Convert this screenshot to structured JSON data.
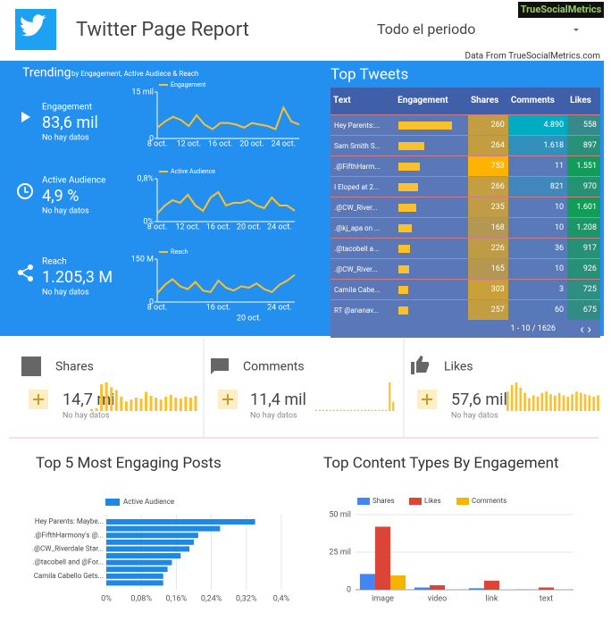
{
  "header": {
    "title": "Twitter Page Report",
    "period": "Todo el periodo",
    "brand": "TrueSocialMetrics",
    "source": "Data From TrueSocialMetrics.com"
  },
  "trending": {
    "title": "Trending",
    "subtitle": "by Engagement, Active Audiece & Reach",
    "metrics": [
      {
        "name": "Engagement",
        "value": "83,6 mil",
        "note": "No hay datos"
      },
      {
        "name": "Active Audience",
        "value": "4,9 %",
        "note": "No hay datos"
      },
      {
        "name": "Reach",
        "value": "1.205,3 M",
        "note": "No hay datos"
      }
    ]
  },
  "scorecards": [
    {
      "name": "Shares",
      "value": "14,7 mil",
      "note": "No hay datos"
    },
    {
      "name": "Comments",
      "value": "11,4 mil",
      "note": "No hay datos"
    },
    {
      "name": "Likes",
      "value": "57,6 mil",
      "note": "No hay datos"
    }
  ],
  "top_tweets": {
    "title": "Top Tweets",
    "columns": [
      "Text",
      "Engagement",
      "Shares",
      "Comments",
      "Likes"
    ],
    "engagement": [
      5708,
      2779,
      2315,
      2057,
      1846,
      1386,
      1179,
      1101,
      1031,
      992
    ],
    "rows": [
      [
        "Hey Parents:...",
        "260",
        "4.890",
        "558"
      ],
      [
        "Sam Smith S...",
        "264",
        "1.618",
        "897"
      ],
      [
        ".@FifthHarm...",
        "753",
        "11",
        "1.551"
      ],
      [
        "I Eloped at 2...",
        "266",
        "821",
        "970"
      ],
      [
        ".@CW_River...",
        "235",
        "10",
        "1.601"
      ],
      [
        ".@kj_apa on ...",
        "168",
        "10",
        "1.208"
      ],
      [
        ".@tacobell a...",
        "226",
        "36",
        "917"
      ],
      [
        ".@CW_River...",
        "165",
        "10",
        "926"
      ],
      [
        "Camila Cabe...",
        "303",
        "3",
        "725"
      ],
      [
        "RT @ananav...",
        "257",
        "60",
        "675"
      ]
    ],
    "pagination": "1 - 10 / 1626"
  },
  "chart_data": [
    {
      "type": "line",
      "categories": [
        "8 oct.",
        null,
        null,
        null,
        "12 oct.",
        null,
        null,
        null,
        "16 oct.",
        null,
        null,
        null,
        "20 oct.",
        null,
        null,
        null,
        "24 oct.",
        null,
        null
      ],
      "series": [
        {
          "name": "Engagement",
          "color": "#fbc02d",
          "values": [
            3500,
            5500,
            7000,
            6000,
            4000,
            7500,
            4500,
            3000,
            5000,
            5000,
            4500,
            3500,
            5000,
            4500,
            4000,
            3000,
            10000,
            5500,
            4500
          ]
        }
      ],
      "ylim": [
        0,
        15000
      ],
      "yticks": [
        0,
        {
          "value": 15000,
          "label": "15 mil"
        }
      ]
    },
    {
      "type": "line",
      "categories": [
        "8 oct.",
        null,
        null,
        null,
        "12 oct.",
        null,
        null,
        null,
        "16 oct.",
        null,
        null,
        null,
        "20 oct.",
        null,
        null,
        null,
        "24 oct.",
        null,
        null
      ],
      "series": [
        {
          "name": "Active Audience",
          "color": "#fbc02d",
          "values": [
            0.15,
            0.3,
            0.4,
            0.35,
            0.5,
            0.3,
            0.2,
            0.45,
            0.55,
            0.3,
            0.35,
            0.35,
            0.4,
            0.3,
            0.25,
            0.45,
            0.3,
            0.3,
            0.2
          ]
        }
      ],
      "ylim": [
        0,
        0.8
      ],
      "yticks": [
        {
          "value": 0,
          "label": "0%"
        },
        {
          "value": 0.8,
          "label": "0,8%"
        }
      ]
    },
    {
      "type": "line",
      "categories": [
        "8 oct.",
        null,
        null,
        null,
        null,
        null,
        null,
        null,
        "16 oct.",
        null,
        null,
        null,
        "20 oct.",
        null,
        null,
        null,
        "24 oct.",
        null,
        null
      ],
      "series": [
        {
          "name": "Reach",
          "color": "#fbc02d",
          "values": [
            30000000,
            60000000,
            80000000,
            55000000,
            45000000,
            70000000,
            40000000,
            35000000,
            75000000,
            50000000,
            40000000,
            55000000,
            50000000,
            65000000,
            45000000,
            35000000,
            60000000,
            75000000,
            95000000
          ]
        }
      ],
      "ylim": [
        0,
        150000000
      ],
      "yticks": [
        0,
        {
          "value": 150000000,
          "label": "150 M"
        }
      ]
    },
    {
      "type": "spark",
      "color": "#fbc02d",
      "values": [
        2,
        3,
        28,
        30,
        25,
        22,
        15,
        10,
        12,
        14,
        13,
        20,
        16,
        14,
        12,
        15,
        17,
        14,
        13,
        15,
        14,
        16
      ]
    },
    {
      "type": "spark",
      "color": "#fbc02d",
      "values": [
        1,
        1,
        1,
        1,
        1,
        1,
        1,
        1,
        1,
        1,
        1,
        1,
        1,
        1,
        1,
        1,
        1,
        1,
        1,
        1,
        1,
        25,
        8
      ]
    },
    {
      "type": "spark",
      "color": "#fbc02d",
      "values": [
        15,
        20,
        22,
        18,
        14,
        10,
        12,
        11,
        14,
        15,
        13,
        12,
        14,
        12,
        11,
        13,
        15,
        14,
        13,
        12,
        11,
        12
      ]
    },
    {
      "type": "hbar",
      "title": "Top 5 Most Engaging Posts",
      "categories": [
        "Hey Parents: Maybe...",
        null,
        ".@FifthHarmony's @...",
        null,
        ".@CW_Riverdale Star...",
        null,
        ".@tacobell and @For...",
        null,
        "Camila Cabello Gets...",
        null
      ],
      "series": [
        {
          "name": "Active Audience",
          "color": "#1e88e5",
          "values": [
            0.34,
            0.26,
            0.21,
            0.2,
            0.19,
            0.17,
            0.15,
            0.14,
            0.13,
            0.13
          ]
        }
      ],
      "xlim": [
        0,
        0.4
      ],
      "xticks": [
        {
          "value": 0,
          "label": "0%"
        },
        {
          "value": 0.08,
          "label": "0,08%"
        },
        {
          "value": 0.16,
          "label": "0,16%"
        },
        {
          "value": 0.24,
          "label": "0,24%"
        },
        {
          "value": 0.32,
          "label": "0,32%"
        },
        {
          "value": 0.4,
          "label": "0,4%"
        }
      ],
      "grid": true
    },
    {
      "type": "bar",
      "title": "Top Content Types By Engagement",
      "categories": [
        "image",
        "video",
        "link",
        "text"
      ],
      "series": [
        {
          "name": "Shares",
          "color": "#4285f4",
          "values": [
            10500,
            1500,
            1000,
            0
          ]
        },
        {
          "name": "Likes",
          "color": "#db4437",
          "values": [
            42000,
            3000,
            6000,
            1500
          ]
        },
        {
          "name": "Comments",
          "color": "#f4b400",
          "values": [
            9500,
            200,
            300,
            200
          ]
        }
      ],
      "ylim": [
        0,
        50000
      ],
      "yticks": [
        0,
        {
          "value": 25000,
          "label": "25 mil"
        },
        {
          "value": 50000,
          "label": "50 mil"
        }
      ],
      "grid": true
    }
  ]
}
